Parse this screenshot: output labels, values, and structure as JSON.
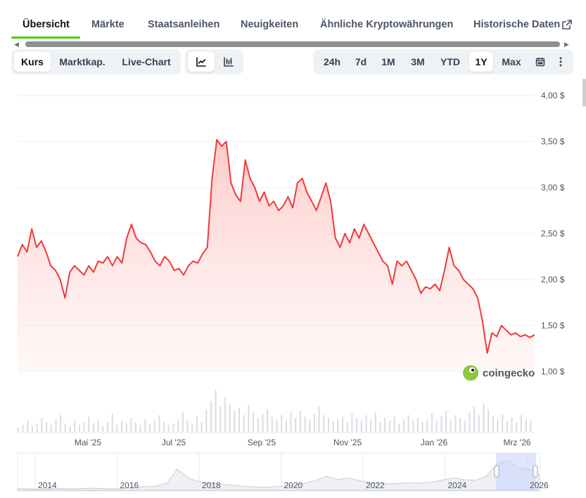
{
  "tabs": [
    {
      "label": "Übersicht",
      "active": true
    },
    {
      "label": "Märkte"
    },
    {
      "label": "Staatsanleihen"
    },
    {
      "label": "Neuigkeiten"
    },
    {
      "label": "Ähnliche Kryptowährungen"
    },
    {
      "label": "Historische Daten"
    }
  ],
  "view_toggle": [
    "Kurs",
    "Marktkap.",
    "Live-Chart"
  ],
  "view_selected": "Kurs",
  "chart_type_icons": [
    "line-chart-icon",
    "candlestick-chart-icon"
  ],
  "ranges": [
    "24h",
    "7d",
    "1M",
    "3M",
    "YTD",
    "1Y",
    "Max"
  ],
  "range_selected": "1Y",
  "toolbar_icons": [
    "calendar-icon",
    "more-options-icon"
  ],
  "brand": "coingecko",
  "colors": {
    "price_line": "#ef3a3a",
    "area_fill": "#ffd6d6",
    "accent_green": "#4bcc00",
    "navigator": "#c7d2fe"
  },
  "chart_data": {
    "type": "area",
    "y_ticks": [
      "1,00 $",
      "1,50 $",
      "2,00 $",
      "2,50 $",
      "3,00 $",
      "3,50 $",
      "4,00 $"
    ],
    "ylim": [
      1.0,
      4.0
    ],
    "x_ticks": [
      "Mai '25",
      "Jul '25",
      "Sep '25",
      "Nov '25",
      "Jan '26",
      "Mrz '26"
    ],
    "series": [
      {
        "values": [
          2.25,
          2.38,
          2.3,
          2.55,
          2.35,
          2.42,
          2.3,
          2.15,
          2.1,
          2.0,
          1.8,
          2.08,
          2.15,
          2.1,
          2.05,
          2.15,
          2.08,
          2.2,
          2.18,
          2.25,
          2.15,
          2.25,
          2.18,
          2.45,
          2.6,
          2.45,
          2.4,
          2.38,
          2.3,
          2.2,
          2.15,
          2.25,
          2.2,
          2.1,
          2.12,
          2.05,
          2.15,
          2.2,
          2.18,
          2.28,
          2.35,
          3.1,
          3.52,
          3.45,
          3.5,
          3.05,
          2.92,
          2.85,
          3.3,
          3.1,
          3.0,
          2.85,
          2.95,
          2.8,
          2.85,
          2.75,
          2.8,
          2.9,
          2.78,
          3.05,
          3.1,
          2.95,
          2.85,
          2.75,
          2.9,
          3.05,
          2.85,
          2.45,
          2.35,
          2.5,
          2.4,
          2.55,
          2.45,
          2.6,
          2.5,
          2.4,
          2.3,
          2.2,
          2.15,
          1.95,
          2.2,
          2.15,
          2.2,
          2.1,
          2.0,
          1.85,
          1.92,
          1.9,
          1.95,
          1.88,
          2.1,
          2.35,
          2.15,
          2.1,
          2.0,
          1.95,
          1.9,
          1.8,
          1.55,
          1.2,
          1.42,
          1.38,
          1.5,
          1.45,
          1.4,
          1.42,
          1.38,
          1.4,
          1.37,
          1.4
        ]
      }
    ]
  },
  "volume": [
    3,
    5,
    8,
    4,
    6,
    10,
    7,
    5,
    9,
    12,
    6,
    4,
    8,
    5,
    7,
    11,
    6,
    9,
    4,
    7,
    13,
    5,
    8,
    6,
    10,
    7,
    5,
    9,
    6,
    8,
    12,
    7,
    5,
    6,
    9,
    14,
    8,
    6,
    11,
    7,
    16,
    22,
    30,
    18,
    25,
    20,
    15,
    17,
    12,
    19,
    14,
    10,
    13,
    16,
    11,
    9,
    12,
    8,
    14,
    10,
    15,
    11,
    9,
    13,
    18,
    12,
    10,
    8,
    9,
    11,
    7,
    13,
    10,
    8,
    12,
    9,
    14,
    7,
    10,
    8,
    11,
    6,
    9,
    12,
    8,
    10,
    7,
    9,
    13,
    8,
    11,
    15,
    9,
    12,
    10,
    8,
    14,
    18,
    12,
    20,
    16,
    11,
    9,
    13,
    8,
    10,
    7,
    12,
    9,
    8
  ],
  "navigator": {
    "years": [
      "2014",
      "2016",
      "2018",
      "2020",
      "2022",
      "2024",
      "2026"
    ],
    "values": [
      0.05,
      0.04,
      0.03,
      0.04,
      0.05,
      0.04,
      0.05,
      0.06,
      0.05,
      0.04,
      0.06,
      0.08,
      0.1,
      0.12,
      0.2,
      0.6,
      0.35,
      0.25,
      0.2,
      0.18,
      0.15,
      0.12,
      0.1,
      0.08,
      0.1,
      0.12,
      0.15,
      0.2,
      0.28,
      0.4,
      0.3,
      0.35,
      0.28,
      0.22,
      0.2,
      0.18,
      0.2,
      0.22,
      0.2,
      0.24,
      0.3,
      0.35,
      0.3,
      0.28,
      0.4,
      0.75,
      0.85,
      0.65,
      0.6,
      0.45
    ]
  }
}
